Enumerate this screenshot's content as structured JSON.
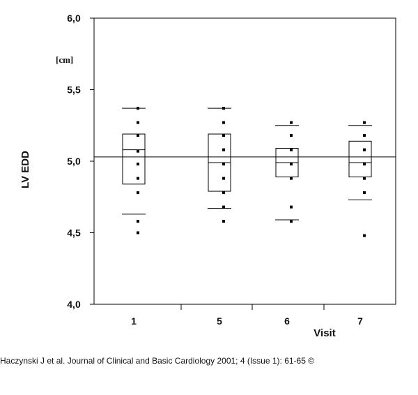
{
  "citation": "Haczynski J et al. Journal of Clinical and Basic Cardiology 2001; 4 (Issue 1): 61-65 ©",
  "chart_data": {
    "type": "box",
    "ylabel": "LV EDD",
    "yunit": "[cm]",
    "xlabel": "Visit",
    "ylim": [
      4.0,
      6.0
    ],
    "yticks": [
      4.0,
      4.5,
      5.0,
      5.5,
      6.0
    ],
    "ytick_labels": [
      "4,0",
      "4,5",
      "5,0",
      "5,5",
      "6,0"
    ],
    "categories": [
      "1",
      "5",
      "6",
      "7"
    ],
    "reference_line": 5.03,
    "grid": false,
    "legend": "none",
    "boxes": [
      {
        "visit": "1",
        "box_low": 4.84,
        "box_high": 5.19,
        "median": 5.08,
        "whisker_low": 4.63,
        "whisker_high": 5.37,
        "points": [
          5.37,
          5.27,
          5.18,
          5.07,
          4.98,
          4.88,
          4.78,
          4.58,
          4.5
        ]
      },
      {
        "visit": "5",
        "box_low": 4.79,
        "box_high": 5.19,
        "median": 4.99,
        "whisker_low": 4.67,
        "whisker_high": 5.37,
        "points": [
          5.37,
          5.27,
          5.18,
          5.08,
          4.98,
          4.88,
          4.78,
          4.68,
          4.58
        ]
      },
      {
        "visit": "6",
        "box_low": 4.89,
        "box_high": 5.09,
        "median": 4.99,
        "whisker_low": 4.59,
        "whisker_high": 5.25,
        "points": [
          5.27,
          5.18,
          5.08,
          4.98,
          4.88,
          4.68,
          4.58,
          4.58
        ]
      },
      {
        "visit": "7",
        "box_low": 4.89,
        "box_high": 5.14,
        "median": 4.99,
        "whisker_low": 4.73,
        "whisker_high": 5.25,
        "points": [
          5.27,
          5.18,
          5.08,
          4.98,
          4.88,
          4.78,
          4.48
        ]
      }
    ]
  }
}
